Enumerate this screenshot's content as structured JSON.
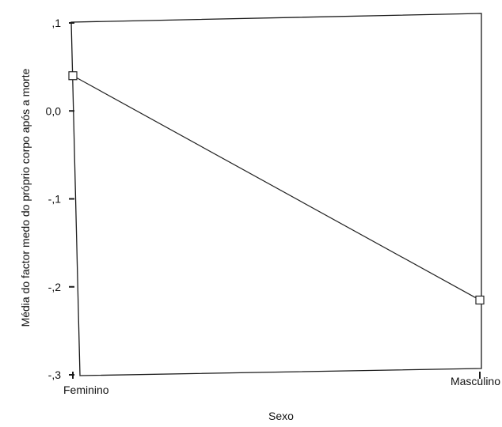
{
  "chart_data": {
    "type": "line",
    "categories": [
      "Feminino",
      "Masculino"
    ],
    "series": [
      {
        "values": [
          0.04,
          -0.215
        ]
      }
    ],
    "xlabel": "Sexo",
    "ylabel": "Média do factor medo do próprio corpo após a morte",
    "ylim": [
      -0.3,
      0.1
    ],
    "yticks": [
      0.1,
      0.0,
      -0.1,
      -0.2,
      -0.3
    ],
    "ytick_labels": [
      ",1",
      "0,0",
      "-,1",
      "-,2",
      "-,3"
    ],
    "grid": false,
    "marker": "square",
    "line_color": "#222222"
  }
}
